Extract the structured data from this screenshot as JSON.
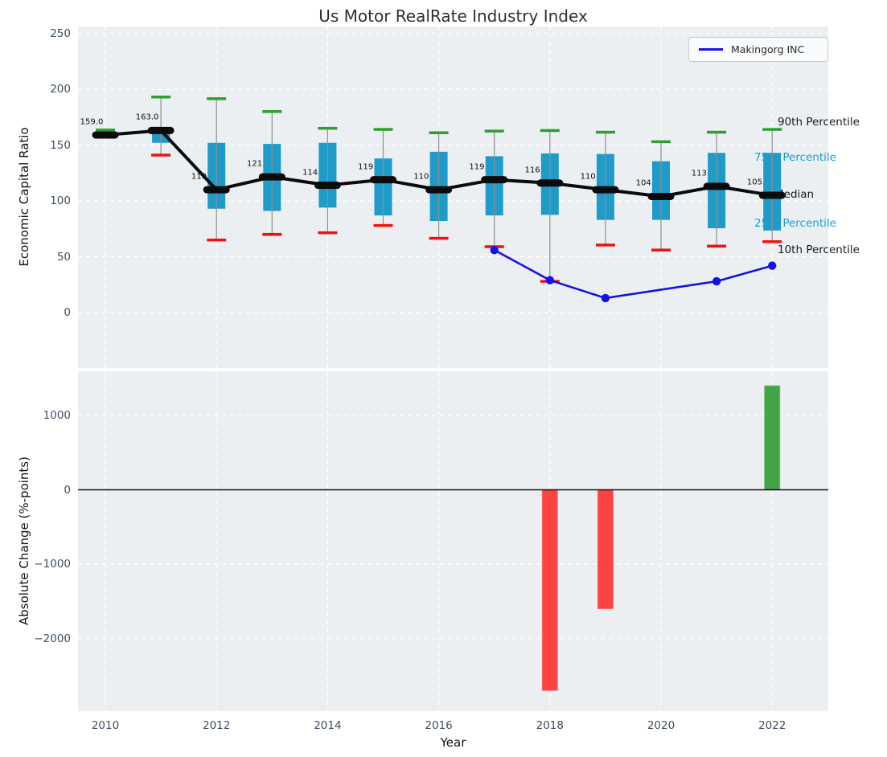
{
  "title": "Us Motor RealRate Industry Index",
  "legend": {
    "label": "Makingorg INC"
  },
  "annotations": {
    "p90": "90th Percentile",
    "p75": "75th Percentile",
    "median": "Median",
    "p25": "25th Percentile",
    "p10": "10th Percentile"
  },
  "colors": {
    "panel_background": "#eceff1",
    "grid": "#ffffff",
    "box_fill": "#1f9bca",
    "whisker": "#8f8f8f",
    "p90_cap": "#2f9e30",
    "p10_cap": "#f21111",
    "median": "#0b0b0b",
    "company_line": "#1512e6",
    "bar_positive": "#43a347",
    "bar_positive_edge": "#71bd6f",
    "bar_negative": "#fc4242",
    "bar_negative_edge": "#fa7070",
    "cyan_label": "#159fd4",
    "tick_color": "#3e4e63"
  },
  "chart_data": [
    {
      "type": "boxplot+line",
      "title": "Us Motor RealRate Industry Index",
      "ylabel": "Economic Capital Ratio",
      "ylim": [
        -50,
        256
      ],
      "yticks": [
        0,
        50,
        100,
        150,
        200,
        250
      ],
      "xticks": [
        2010,
        2012,
        2014,
        2016,
        2018,
        2020,
        2022
      ],
      "grid": true,
      "legend_position": "upper right",
      "years": [
        2010,
        2011,
        2012,
        2013,
        2014,
        2015,
        2016,
        2017,
        2018,
        2019,
        2020,
        2021,
        2022
      ],
      "percentiles": {
        "p90": [
          163.5,
          193,
          191.5,
          180,
          165,
          164,
          161,
          162.5,
          163,
          161.5,
          153,
          161.5,
          164
        ],
        "q75": [
          161,
          166,
          152,
          151,
          152,
          138,
          144,
          140,
          142.5,
          142,
          135.5,
          143,
          143
        ],
        "median": [
          159.0,
          163.0,
          110.0,
          121.5,
          114.0,
          119.0,
          110.0,
          119.0,
          116.0,
          110.0,
          104.0,
          113.0,
          105.0
        ],
        "q25": [
          157.5,
          152,
          93,
          91,
          94,
          87,
          82,
          87,
          87.5,
          83,
          83,
          75.5,
          73.5
        ],
        "p10": [
          157,
          141,
          65,
          70,
          71.5,
          78,
          66.5,
          59,
          28,
          60.5,
          56,
          59.5,
          63.5
        ]
      },
      "median_labels": [
        "159.0",
        "163.0",
        "110.0",
        "121.5",
        "114.0",
        "119.0",
        "110.0",
        "119.0",
        "116.0",
        "110.0",
        "104.0",
        "113.0",
        "105.0"
      ],
      "series": [
        {
          "name": "Makingorg INC",
          "x": [
            2017,
            2018,
            2019,
            2021,
            2022
          ],
          "values": [
            56,
            29,
            13,
            28,
            42
          ]
        }
      ]
    },
    {
      "type": "bar",
      "ylabel": "Absolute Change (%-points)",
      "xlabel": "Year",
      "ylim": [
        -3000,
        1600
      ],
      "yticks": [
        1000,
        0,
        -1000,
        -2000
      ],
      "xticks": [
        2010,
        2012,
        2014,
        2016,
        2018,
        2020,
        2022
      ],
      "grid": true,
      "zero_line": true,
      "categories": [
        2018,
        2019,
        2022
      ],
      "values": [
        -2700,
        -1600,
        1400
      ]
    }
  ]
}
